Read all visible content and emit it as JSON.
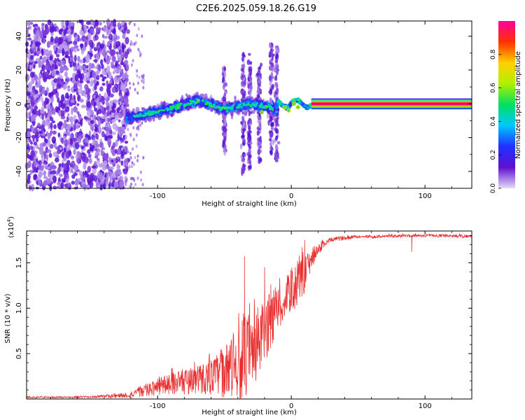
{
  "title": "C2E6.2025.059.18.26.G19",
  "chart_data": [
    {
      "type": "heatmap",
      "xlabel": "Height of straight line (km)",
      "ylabel": "Frequency (Hz)",
      "xlim": [
        -198,
        135
      ],
      "ylim": [
        -50,
        49
      ],
      "x_ticks": [
        -100,
        0,
        100
      ],
      "x_tick_labels": [
        "-100",
        "0",
        "100"
      ],
      "y_ticks": [
        -40,
        -20,
        0,
        20,
        40
      ],
      "y_tick_labels": [
        "-40",
        "-20",
        "0",
        "20",
        "40"
      ],
      "colorbar": {
        "label": "Normalized spectral amplitude",
        "range": [
          0,
          1
        ],
        "ticks": [
          0.0,
          0.2,
          0.4,
          0.6,
          0.8
        ],
        "tick_labels": [
          "0.0",
          "0.2",
          "0.4",
          "0.6",
          "0.8"
        ],
        "colors": [
          "#e4dcf8",
          "#6010d0",
          "#2030ff",
          "#00c8ff",
          "#00e060",
          "#b0f000",
          "#ffd000",
          "#ff3000",
          "#ff00a0"
        ]
      },
      "regions": [
        {
          "x": [
            -198,
            -122
          ],
          "freq": [
            -50,
            49
          ],
          "level": 0.15,
          "note_visible": false
        },
        {
          "x": [
            -122,
            -10
          ],
          "freq_center_at_x": [
            [
              -120,
              -8
            ],
            [
              -90,
              -3
            ],
            [
              -70,
              2
            ],
            [
              -50,
              -3
            ],
            [
              -30,
              0
            ],
            [
              -12,
              -3
            ]
          ],
          "level": 0.3
        },
        {
          "x": [
            -10,
            15
          ],
          "freq_center": 0,
          "level": 0.45
        },
        {
          "x": [
            15,
            135
          ],
          "freq_center": 0,
          "level": 0.98
        }
      ]
    },
    {
      "type": "line",
      "xlabel": "Height of straight line (km)",
      "ylabel": "SNR (10 * v/v)",
      "y_multiplier": "(x10",
      "y_multiplier_exp": "4",
      "y_multiplier_close": ")",
      "xlim": [
        -198,
        135
      ],
      "ylim": [
        0,
        1.85
      ],
      "x_ticks": [
        -100,
        0,
        100
      ],
      "x_tick_labels": [
        "-100",
        "0",
        "100"
      ],
      "y_ticks": [
        0.5,
        1.0,
        1.5
      ],
      "y_tick_labels": [
        "0.5",
        "1.0",
        "1.5"
      ],
      "series": [
        {
          "color": "#e83030",
          "x": [
            -198,
            -170,
            -140,
            -120,
            -110,
            -100,
            -90,
            -80,
            -70,
            -60,
            -50,
            -40,
            -35,
            -30,
            -25,
            -20,
            -15,
            -10,
            -5,
            0,
            5,
            10,
            15,
            20,
            25,
            30,
            40,
            50,
            60,
            80,
            90,
            100,
            120,
            135
          ],
          "y": [
            0.02,
            0.02,
            0.03,
            0.05,
            0.1,
            0.15,
            0.2,
            0.22,
            0.25,
            0.28,
            0.35,
            0.45,
            0.55,
            0.55,
            0.7,
            0.8,
            0.95,
            1.05,
            1.1,
            1.25,
            1.3,
            1.4,
            1.55,
            1.65,
            1.72,
            1.76,
            1.78,
            1.79,
            1.79,
            1.8,
            1.8,
            1.8,
            1.8,
            1.79
          ],
          "spread": [
            0.01,
            0.01,
            0.02,
            0.04,
            0.08,
            0.12,
            0.15,
            0.18,
            0.2,
            0.25,
            0.35,
            0.5,
            0.6,
            0.55,
            0.5,
            0.45,
            0.4,
            0.3,
            0.25,
            0.3,
            0.3,
            0.25,
            0.12,
            0.08,
            0.05,
            0.03,
            0.03,
            0.02,
            0.02,
            0.02,
            0.02,
            0.02,
            0.02,
            0.02
          ],
          "peaks": [
            {
              "x": -35,
              "y": 1.57
            },
            {
              "x": -20,
              "y": 1.45
            },
            {
              "x": 8,
              "y": 1.67
            },
            {
              "x": 10,
              "y": 1.75
            },
            {
              "x": 90,
              "y": 1.62
            }
          ]
        }
      ]
    }
  ]
}
